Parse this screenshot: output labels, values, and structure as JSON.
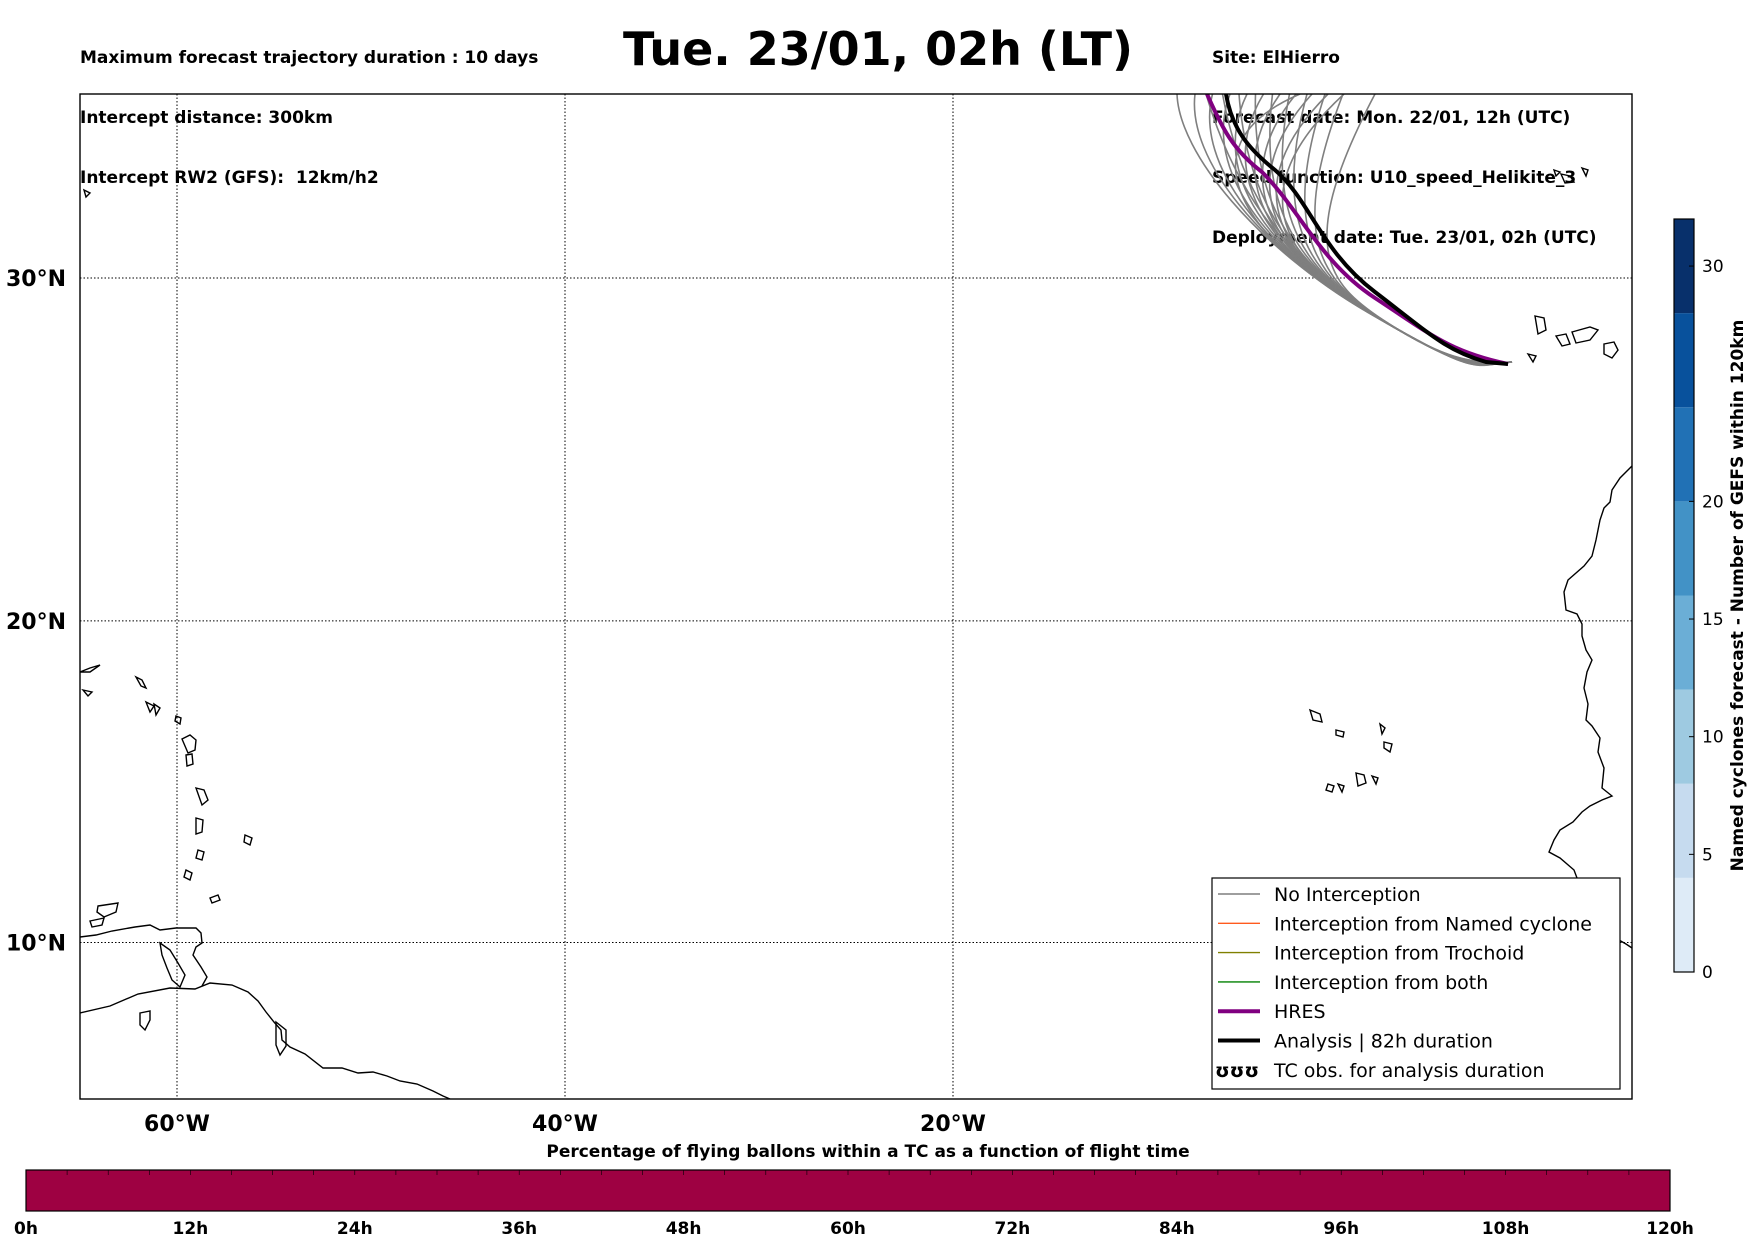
{
  "header": {
    "left_lines": [
      "Maximum forecast trajectory duration : 10 days",
      "Intercept distance: 300km",
      "Intercept RW2 (GFS):  12km/h2"
    ],
    "title": "Tue. 23/01, 02h (LT)",
    "right_lines": [
      "Site: ElHierro",
      "Forecast date: Mon. 22/01, 12h (UTC)",
      "Speed function: U10_speed_Helikite_3",
      "Deployment date: Tue. 23/01, 02h (UTC)"
    ]
  },
  "map": {
    "lon_range": [
      -65,
      15
    ],
    "lat_range": [
      5,
      35
    ],
    "lon_ticks": [
      {
        "value": -60,
        "label": "60°W"
      },
      {
        "value": -40,
        "label": "40°W"
      },
      {
        "value": -20,
        "label": "20°W"
      }
    ],
    "lat_ticks": [
      {
        "value": 30,
        "label": "30°N"
      },
      {
        "value": 20,
        "label": "20°N"
      },
      {
        "value": 10,
        "label": "10°N"
      }
    ],
    "colors": {
      "no_interception": "#7f7f7f",
      "named_cyclone": "#ff5a1e",
      "trochoid": "#808000",
      "both": "#008000",
      "hres": "#800080",
      "analysis": "#000000"
    }
  },
  "legend": {
    "items": [
      {
        "label": "No Interception",
        "style": "thin",
        "color": "#7f7f7f"
      },
      {
        "label": "Interception from Named cyclone",
        "style": "thin",
        "color": "#ff5a1e"
      },
      {
        "label": "Interception from Trochoid",
        "style": "thin",
        "color": "#808000"
      },
      {
        "label": "Interception from both",
        "style": "thin",
        "color": "#008000"
      },
      {
        "label": "HRES",
        "style": "thick",
        "color": "#800080"
      },
      {
        "label": "Analysis | 82h duration",
        "style": "thick",
        "color": "#000000"
      },
      {
        "label": "TC obs. for analysis duration",
        "style": "symbol",
        "symbol": "ʊʊʊ"
      }
    ]
  },
  "colorbar": {
    "label": "Named cyclones forecast - Number of GEFS within 120km",
    "range": [
      0,
      32
    ],
    "ticks": [
      0,
      5,
      10,
      15,
      20,
      30
    ],
    "colors": [
      "#deebf7",
      "#c6dbef",
      "#9ecae1",
      "#6baed6",
      "#4292c6",
      "#2171b5",
      "#08519c",
      "#08306b"
    ]
  },
  "bottom_bar": {
    "title": "Percentage of flying ballons within a TC as a function of flight time",
    "ticks": [
      "0h",
      "12h",
      "24h",
      "36h",
      "48h",
      "60h",
      "72h",
      "84h",
      "96h",
      "108h",
      "120h"
    ],
    "color": "#9e0142"
  }
}
